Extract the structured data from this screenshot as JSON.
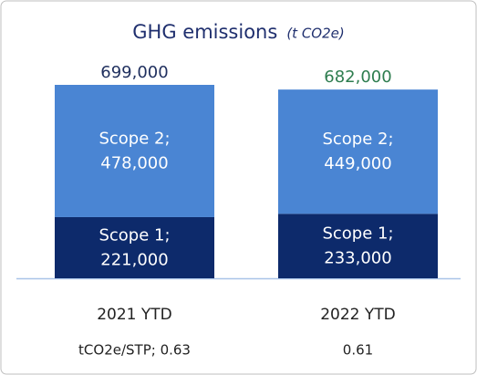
{
  "chart_data": {
    "type": "stacked-bar",
    "title": "GHG emissions",
    "subtitle": "(t CO2e)",
    "categories": [
      "2021 YTD",
      "2022 YTD"
    ],
    "series": [
      {
        "name": "Scope 1;",
        "color": "#0d2a6b",
        "values": [
          221000,
          233000
        ],
        "value_labels": [
          "221,000",
          "233,000"
        ]
      },
      {
        "name": "Scope 2;",
        "color": "#4a85d3",
        "values": [
          478000,
          449000
        ],
        "value_labels": [
          "478,000",
          "449,000"
        ]
      }
    ],
    "total_labels": [
      "699,000",
      "682,000"
    ],
    "total_label_colors": [
      "#1f2f5e",
      "#2e7d4f"
    ],
    "footnotes": [
      "tCO2e/STP; 0.63",
      "0.61"
    ]
  }
}
